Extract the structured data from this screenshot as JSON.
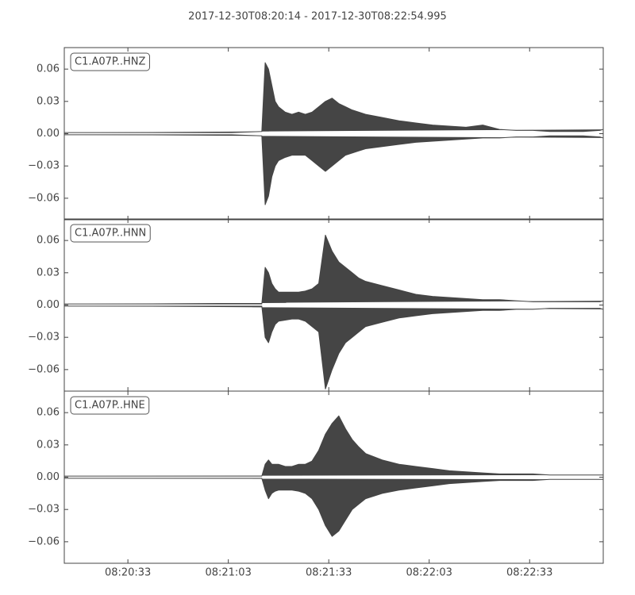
{
  "title": "2017-12-30T08:20:14  -  2017-12-30T08:22:54.995",
  "chart_data": [
    {
      "type": "line",
      "label": "C1.A07P..HNZ",
      "x": [
        30014,
        30024,
        30034,
        30044,
        30054,
        30064,
        30073,
        30074,
        30075,
        30076,
        30077,
        30078,
        30080,
        30082,
        30084,
        30086,
        30088,
        30090,
        30092,
        30094,
        30096,
        30098,
        30100,
        30102,
        30104,
        30109,
        30114,
        30119,
        30124,
        30129,
        30134,
        30139,
        30144,
        30149,
        30154,
        30159,
        30164,
        30169,
        30174,
        30174.995
      ],
      "series": [
        {
          "color": "#454545",
          "values": [
            0.001,
            0.001,
            0.001,
            0.001,
            0.001,
            0.001,
            0.002,
            0.066,
            0.06,
            0.045,
            0.03,
            0.025,
            0.02,
            0.018,
            0.02,
            0.018,
            0.02,
            0.025,
            0.03,
            0.033,
            0.028,
            0.025,
            0.022,
            0.02,
            0.018,
            0.015,
            0.012,
            0.01,
            0.008,
            0.007,
            0.006,
            0.008,
            0.004,
            0.003,
            0.003,
            0.002,
            0.002,
            0.002,
            0.003,
            0.004
          ]
        },
        {
          "color": "#454545",
          "values": [
            -0.001,
            -0.001,
            -0.001,
            -0.001,
            -0.001,
            -0.001,
            -0.002,
            -0.066,
            -0.058,
            -0.04,
            -0.03,
            -0.025,
            -0.022,
            -0.02,
            -0.02,
            -0.02,
            -0.025,
            -0.03,
            -0.035,
            -0.03,
            -0.025,
            -0.02,
            -0.018,
            -0.016,
            -0.014,
            -0.012,
            -0.01,
            -0.008,
            -0.007,
            -0.006,
            -0.005,
            -0.004,
            -0.004,
            -0.003,
            -0.003,
            -0.002,
            -0.002,
            -0.002,
            -0.003,
            -0.004
          ]
        }
      ],
      "xlim": [
        30014,
        30174.995
      ],
      "ylim": [
        -0.08,
        0.08
      ],
      "yticks": [
        {
          "value": -0.06,
          "label": "−0.06"
        },
        {
          "value": -0.03,
          "label": "−0.03"
        },
        {
          "value": 0,
          "label": "0.00"
        },
        {
          "value": 0.03,
          "label": "0.03"
        },
        {
          "value": 0.06,
          "label": "0.06"
        }
      ]
    },
    {
      "type": "line",
      "label": "C1.A07P..HNN",
      "x": [
        30014,
        30024,
        30034,
        30044,
        30054,
        30064,
        30073,
        30074,
        30075,
        30076,
        30077,
        30078,
        30080,
        30082,
        30084,
        30086,
        30088,
        30090,
        30092,
        30094,
        30096,
        30098,
        30100,
        30102,
        30104,
        30109,
        30114,
        30119,
        30124,
        30129,
        30134,
        30139,
        30144,
        30149,
        30154,
        30159,
        30164,
        30169,
        30174,
        30174.995
      ],
      "series": [
        {
          "color": "#454545",
          "values": [
            0.001,
            0.001,
            0.001,
            0.001,
            0.001,
            0.001,
            0.001,
            0.035,
            0.03,
            0.02,
            0.015,
            0.012,
            0.012,
            0.012,
            0.012,
            0.013,
            0.015,
            0.02,
            0.065,
            0.05,
            0.04,
            0.035,
            0.03,
            0.025,
            0.022,
            0.018,
            0.014,
            0.01,
            0.008,
            0.007,
            0.006,
            0.005,
            0.005,
            0.004,
            0.003,
            0.003,
            0.003,
            0.003,
            0.003,
            0.004
          ]
        },
        {
          "color": "#454545",
          "values": [
            -0.001,
            -0.001,
            -0.001,
            -0.001,
            -0.001,
            -0.001,
            -0.001,
            -0.03,
            -0.035,
            -0.025,
            -0.018,
            -0.015,
            -0.014,
            -0.013,
            -0.013,
            -0.015,
            -0.02,
            -0.025,
            -0.078,
            -0.06,
            -0.045,
            -0.035,
            -0.03,
            -0.025,
            -0.02,
            -0.016,
            -0.012,
            -0.01,
            -0.008,
            -0.007,
            -0.006,
            -0.005,
            -0.005,
            -0.004,
            -0.004,
            -0.003,
            -0.003,
            -0.003,
            -0.003,
            -0.004
          ]
        }
      ],
      "xlim": [
        30014,
        30174.995
      ],
      "ylim": [
        -0.08,
        0.08
      ],
      "yticks": [
        {
          "value": -0.06,
          "label": "−0.06"
        },
        {
          "value": -0.03,
          "label": "−0.03"
        },
        {
          "value": 0,
          "label": "0.00"
        },
        {
          "value": 0.03,
          "label": "0.03"
        },
        {
          "value": 0.06,
          "label": "0.06"
        }
      ]
    },
    {
      "type": "line",
      "label": "C1.A07P..HNE",
      "x": [
        30014,
        30024,
        30034,
        30044,
        30054,
        30064,
        30073,
        30074,
        30075,
        30076,
        30077,
        30078,
        30080,
        30082,
        30084,
        30086,
        30088,
        30090,
        30092,
        30094,
        30096,
        30098,
        30100,
        30102,
        30104,
        30109,
        30114,
        30119,
        30124,
        30129,
        30134,
        30139,
        30144,
        30149,
        30154,
        30159,
        30164,
        30169,
        30174,
        30174.995
      ],
      "series": [
        {
          "color": "#454545",
          "values": [
            0.001,
            0.001,
            0.001,
            0.001,
            0.001,
            0.001,
            0.001,
            0.012,
            0.016,
            0.012,
            0.012,
            0.012,
            0.01,
            0.01,
            0.012,
            0.012,
            0.015,
            0.025,
            0.04,
            0.05,
            0.057,
            0.045,
            0.035,
            0.028,
            0.022,
            0.016,
            0.012,
            0.01,
            0.008,
            0.006,
            0.005,
            0.004,
            0.003,
            0.003,
            0.003,
            0.002,
            0.002,
            0.002,
            0.002,
            0.002
          ]
        },
        {
          "color": "#454545",
          "values": [
            -0.001,
            -0.001,
            -0.001,
            -0.001,
            -0.001,
            -0.001,
            -0.001,
            -0.012,
            -0.02,
            -0.015,
            -0.013,
            -0.012,
            -0.012,
            -0.012,
            -0.013,
            -0.015,
            -0.02,
            -0.03,
            -0.045,
            -0.055,
            -0.05,
            -0.04,
            -0.03,
            -0.025,
            -0.02,
            -0.015,
            -0.012,
            -0.01,
            -0.008,
            -0.006,
            -0.005,
            -0.004,
            -0.003,
            -0.003,
            -0.003,
            -0.002,
            -0.002,
            -0.002,
            -0.002,
            -0.002
          ]
        }
      ],
      "xlim": [
        30014,
        30174.995
      ],
      "ylim": [
        -0.08,
        0.08
      ],
      "yticks": [
        {
          "value": -0.06,
          "label": "−0.06"
        },
        {
          "value": -0.03,
          "label": "−0.03"
        },
        {
          "value": 0,
          "label": "0.00"
        },
        {
          "value": 0.03,
          "label": "0.03"
        },
        {
          "value": 0.06,
          "label": "0.06"
        }
      ],
      "xticks": [
        {
          "value": 30033,
          "label": "08:20:33"
        },
        {
          "value": 30063,
          "label": "08:21:03"
        },
        {
          "value": 30093,
          "label": "08:21:33"
        },
        {
          "value": 30123,
          "label": "08:22:03"
        },
        {
          "value": 30153,
          "label": "08:22:33"
        }
      ]
    }
  ]
}
